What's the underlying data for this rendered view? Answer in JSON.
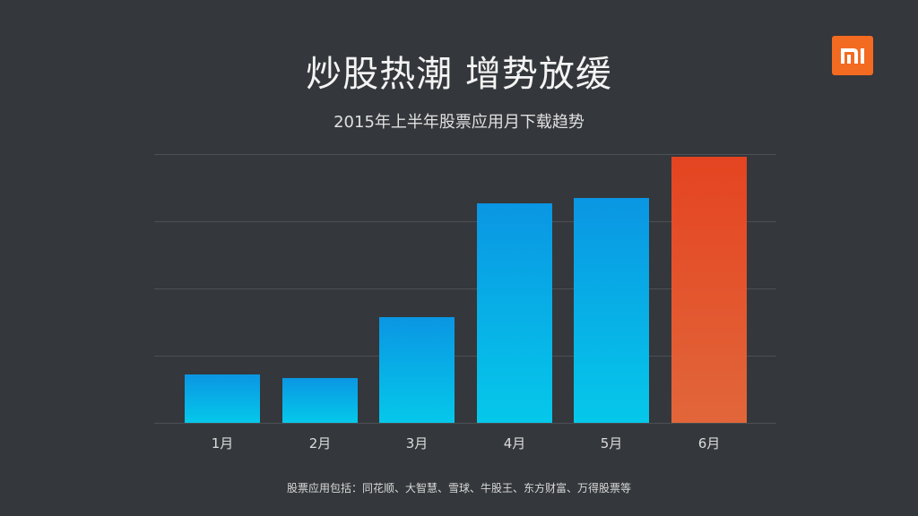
{
  "header": {
    "title": "炒股热潮 增势放缓",
    "subtitle": "2015年上半年股票应用月下载趋势"
  },
  "logo": {
    "name": "mi-logo",
    "color": "#f36a21"
  },
  "footnote": "股票应用包括：同花顺、大智慧、雪球、牛股王、东方财富、万得股票等",
  "colors": {
    "background": "#34373b",
    "bar_blue_top": "#0a96e3",
    "bar_blue_bottom": "#05c8ea",
    "bar_highlight_top": "#e44421",
    "bar_highlight_bottom": "#e2663a",
    "gridline": "#4c4f53"
  },
  "chart_data": {
    "type": "bar",
    "title": "2015年上半年股票应用月下载趋势",
    "xlabel": "",
    "ylabel": "",
    "categories": [
      "1月",
      "2月",
      "3月",
      "4月",
      "5月",
      "6月"
    ],
    "values": [
      0.72,
      0.67,
      1.57,
      3.27,
      3.35,
      3.96
    ],
    "value_units": "relative (gridline spacing = 1 unit; no y-axis labels shown)",
    "ylim": [
      0,
      4
    ],
    "grid": true,
    "yticks_visible": false,
    "highlight_index": 5,
    "legend": null
  }
}
